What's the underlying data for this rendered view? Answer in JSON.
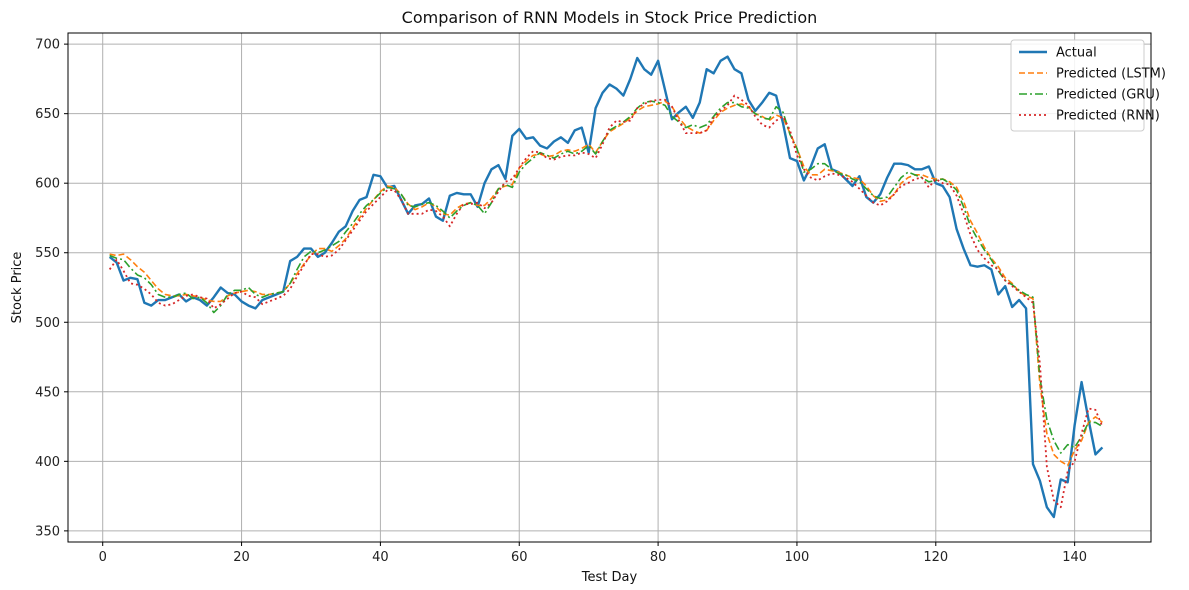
{
  "chart_data": {
    "type": "line",
    "title": "Comparison of RNN Models in Stock Price Prediction",
    "xlabel": "Test Day",
    "ylabel": "Stock Price",
    "xlim": [
      -5,
      151
    ],
    "ylim": [
      342,
      708
    ],
    "xticks": [
      0,
      20,
      40,
      60,
      80,
      100,
      120,
      140
    ],
    "yticks": [
      350,
      400,
      450,
      500,
      550,
      600,
      650,
      700
    ],
    "grid": true,
    "legend_position": "top-right",
    "x": [
      1,
      2,
      3,
      4,
      5,
      6,
      7,
      8,
      9,
      10,
      11,
      12,
      13,
      14,
      15,
      16,
      17,
      18,
      19,
      20,
      21,
      22,
      23,
      24,
      25,
      26,
      27,
      28,
      29,
      30,
      31,
      32,
      33,
      34,
      35,
      36,
      37,
      38,
      39,
      40,
      41,
      42,
      43,
      44,
      45,
      46,
      47,
      48,
      49,
      50,
      51,
      52,
      53,
      54,
      55,
      56,
      57,
      58,
      59,
      60,
      61,
      62,
      63,
      64,
      65,
      66,
      67,
      68,
      69,
      70,
      71,
      72,
      73,
      74,
      75,
      76,
      77,
      78,
      79,
      80,
      81,
      82,
      83,
      84,
      85,
      86,
      87,
      88,
      89,
      90,
      91,
      92,
      93,
      94,
      95,
      96,
      97,
      98,
      99,
      100,
      101,
      102,
      103,
      104,
      105,
      106,
      107,
      108,
      109,
      110,
      111,
      112,
      113,
      114,
      115,
      116,
      117,
      118,
      119,
      120,
      121,
      122,
      123,
      124,
      125,
      126,
      127,
      128,
      129,
      130,
      131,
      132,
      133,
      134,
      135,
      136,
      137,
      138,
      139,
      140,
      141,
      142,
      143,
      144
    ],
    "series": [
      {
        "name": "Actual",
        "color": "#1f77b4",
        "dash": "solid",
        "values": [
          547,
          543,
          530,
          532,
          531,
          514,
          512,
          516,
          516,
          518,
          520,
          515,
          518,
          516,
          512,
          518,
          525,
          521,
          520,
          515,
          512,
          510,
          516,
          518,
          520,
          522,
          544,
          547,
          553,
          553,
          547,
          550,
          557,
          565,
          569,
          580,
          588,
          590,
          606,
          605,
          597,
          598,
          588,
          578,
          584,
          585,
          589,
          576,
          573,
          591,
          593,
          592,
          592,
          583,
          600,
          610,
          613,
          603,
          634,
          639,
          632,
          633,
          627,
          625,
          630,
          633,
          629,
          638,
          640,
          622,
          654,
          665,
          671,
          668,
          663,
          675,
          690,
          682,
          678,
          688,
          667,
          646,
          651,
          655,
          647,
          658,
          682,
          679,
          688,
          691,
          682,
          679,
          660,
          652,
          658,
          665,
          663,
          643,
          618,
          616,
          602,
          612,
          625,
          628,
          610,
          608,
          603,
          598,
          605,
          590,
          586,
          592,
          604,
          614,
          614,
          613,
          610,
          610,
          612,
          600,
          598,
          590,
          567,
          553,
          541,
          540,
          541,
          538,
          520,
          526,
          511,
          516,
          510,
          398,
          386,
          367,
          360,
          387,
          385,
          426,
          457,
          430,
          405,
          410
        ]
      },
      {
        "name": "Predicted (LSTM)",
        "color": "#ff7f0e",
        "dash": "dashed",
        "values": [
          549,
          548,
          549,
          545,
          540,
          536,
          530,
          524,
          520,
          519,
          519,
          520,
          519,
          518,
          516,
          515,
          515,
          519,
          521,
          522,
          523,
          522,
          520,
          520,
          521,
          522,
          528,
          535,
          542,
          548,
          553,
          553,
          551,
          555,
          560,
          568,
          575,
          582,
          588,
          594,
          598,
          597,
          592,
          585,
          581,
          583,
          586,
          583,
          578,
          577,
          582,
          585,
          586,
          584,
          584,
          589,
          596,
          598,
          599,
          611,
          616,
          620,
          621,
          619,
          620,
          623,
          624,
          623,
          625,
          628,
          622,
          630,
          637,
          640,
          643,
          647,
          652,
          655,
          656,
          657,
          659,
          655,
          647,
          641,
          638,
          636,
          638,
          645,
          651,
          654,
          656,
          657,
          655,
          650,
          648,
          645,
          649,
          647,
          636,
          625,
          612,
          606,
          606,
          610,
          609,
          608,
          606,
          604,
          603,
          598,
          591,
          587,
          588,
          592,
          600,
          604,
          606,
          606,
          604,
          603,
          603,
          601,
          597,
          587,
          573,
          564,
          554,
          546,
          540,
          532,
          528,
          522,
          519,
          517,
          455,
          420,
          405,
          400,
          397,
          408,
          415,
          428,
          432,
          428
        ]
      },
      {
        "name": "Predicted (GRU)",
        "color": "#2ca02c",
        "dash": "dashdot",
        "values": [
          548,
          546,
          545,
          539,
          534,
          532,
          527,
          520,
          518,
          518,
          520,
          521,
          517,
          518,
          514,
          507,
          512,
          520,
          523,
          523,
          525,
          520,
          518,
          520,
          521,
          522,
          528,
          538,
          547,
          551,
          550,
          552,
          555,
          558,
          565,
          571,
          578,
          584,
          588,
          593,
          597,
          596,
          592,
          584,
          583,
          585,
          586,
          584,
          580,
          575,
          580,
          584,
          586,
          584,
          578,
          586,
          596,
          599,
          597,
          608,
          614,
          618,
          622,
          620,
          618,
          621,
          623,
          621,
          623,
          627,
          621,
          630,
          638,
          641,
          644,
          648,
          654,
          658,
          659,
          658,
          656,
          648,
          644,
          640,
          642,
          640,
          642,
          648,
          654,
          658,
          658,
          655,
          654,
          650,
          647,
          646,
          655,
          651,
          635,
          625,
          608,
          610,
          614,
          614,
          610,
          607,
          606,
          603,
          601,
          596,
          591,
          589,
          590,
          597,
          604,
          608,
          606,
          604,
          601,
          602,
          603,
          600,
          595,
          583,
          569,
          560,
          552,
          545,
          537,
          530,
          527,
          523,
          520,
          518,
          460,
          430,
          415,
          406,
          412,
          410,
          418,
          428,
          428,
          425
        ]
      },
      {
        "name": "Predicted (RNN)",
        "color": "#d62728",
        "dash": "dotted",
        "values": [
          538,
          545,
          537,
          528,
          527,
          524,
          520,
          514,
          512,
          513,
          516,
          519,
          520,
          518,
          517,
          510,
          513,
          517,
          521,
          522,
          519,
          518,
          513,
          515,
          517,
          519,
          524,
          533,
          541,
          549,
          549,
          547,
          548,
          552,
          559,
          566,
          573,
          580,
          585,
          590,
          595,
          595,
          588,
          578,
          578,
          578,
          581,
          580,
          576,
          569,
          578,
          585,
          585,
          586,
          582,
          586,
          594,
          601,
          603,
          611,
          618,
          623,
          622,
          618,
          617,
          619,
          620,
          620,
          622,
          621,
          618,
          628,
          640,
          645,
          644,
          645,
          654,
          657,
          659,
          660,
          660,
          655,
          645,
          636,
          636,
          636,
          638,
          647,
          652,
          656,
          663,
          660,
          656,
          648,
          642,
          640,
          645,
          648,
          638,
          620,
          610,
          604,
          602,
          605,
          607,
          606,
          604,
          601,
          596,
          591,
          586,
          584,
          587,
          592,
          598,
          600,
          603,
          604,
          597,
          603,
          600,
          599,
          591,
          578,
          563,
          552,
          546,
          541,
          538,
          530,
          526,
          522,
          518,
          514,
          470,
          396,
          372,
          367,
          393,
          400,
          420,
          438,
          437,
          425
        ]
      }
    ]
  }
}
